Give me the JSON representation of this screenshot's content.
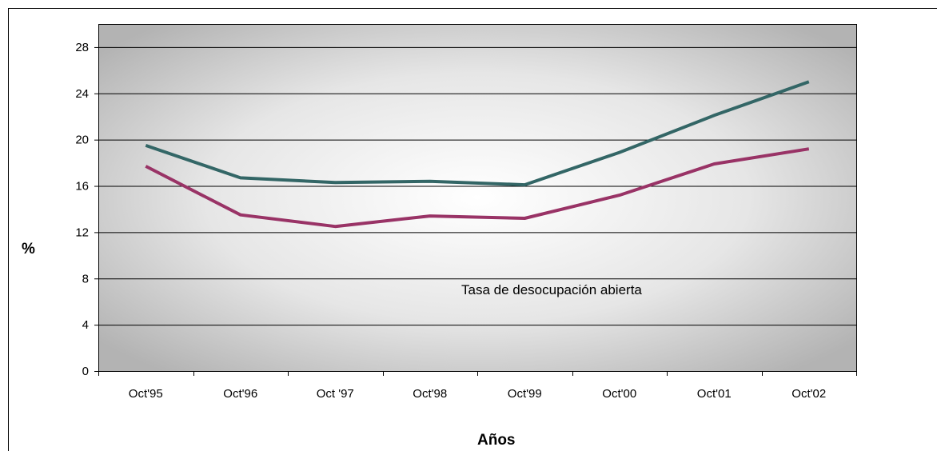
{
  "chart_data": {
    "type": "line",
    "categories": [
      "Oct'95",
      "Oct'96",
      "Oct '97",
      "Oct'98",
      "Oct'99",
      "Oct'00",
      "Oct'01",
      "Oct'02"
    ],
    "series": [
      {
        "values": [
          19.5,
          16.7,
          16.3,
          16.4,
          16.1,
          18.9,
          22.1,
          25.0
        ],
        "color": "#336666"
      },
      {
        "values": [
          17.7,
          13.5,
          12.5,
          13.4,
          13.2,
          15.2,
          17.9,
          19.2
        ],
        "color": "#993366"
      }
    ],
    "ylabel": "%",
    "xlabel": "Años",
    "annotation": "Tasa de desocupación abierta",
    "ylim": [
      0,
      30
    ],
    "yticks": [
      0,
      4,
      8,
      12,
      16,
      20,
      24,
      28
    ],
    "grid": true,
    "legend": "none"
  }
}
